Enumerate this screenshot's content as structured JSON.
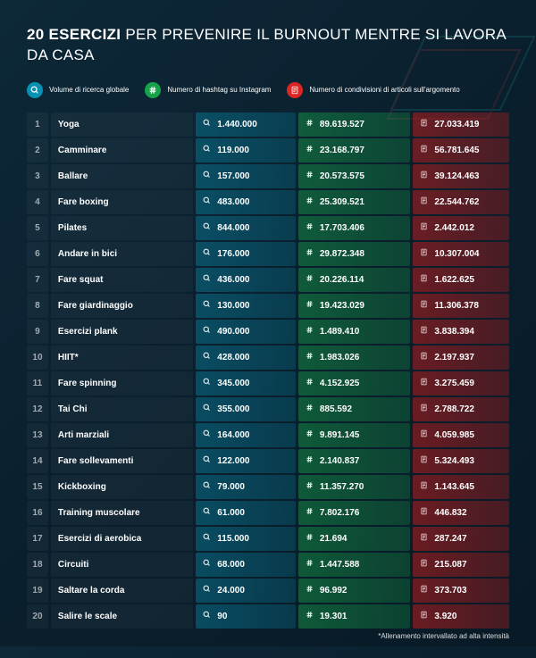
{
  "title_bold": "20 ESERCIZI",
  "title_rest": " PER PREVENIRE IL BURNOUT MENTRE SI LAVORA DA CASA",
  "legend": {
    "search": "Volume di ricerca globale",
    "hash": "Numero di hashtag su Instagram",
    "doc": "Numero di condivisioni di articoli sull'argomento"
  },
  "colors": {
    "search_icon_bg": "#0891b2",
    "hash_icon_bg": "#16a34a",
    "doc_icon_bg": "#dc2626",
    "search_cell_bg": "rgba(8,145,178,0.35)",
    "hash_cell_bg": "rgba(22,163,74,0.4)",
    "doc_cell_bg": "rgba(185,28,28,0.45)",
    "background": "#0a1f2d",
    "text": "#ffffff"
  },
  "table": {
    "type": "table",
    "columns": [
      "rank",
      "name",
      "search_volume",
      "hashtags",
      "shares"
    ],
    "rows": [
      {
        "rank": "1",
        "name": "Yoga",
        "search": "1.440.000",
        "hash": "89.619.527",
        "doc": "27.033.419"
      },
      {
        "rank": "2",
        "name": "Camminare",
        "search": "119.000",
        "hash": "23.168.797",
        "doc": "56.781.645"
      },
      {
        "rank": "3",
        "name": "Ballare",
        "search": "157.000",
        "hash": "20.573.575",
        "doc": "39.124.463"
      },
      {
        "rank": "4",
        "name": "Fare boxing",
        "search": "483.000",
        "hash": "25.309.521",
        "doc": "22.544.762"
      },
      {
        "rank": "5",
        "name": "Pilates",
        "search": "844.000",
        "hash": "17.703.406",
        "doc": "2.442.012"
      },
      {
        "rank": "6",
        "name": "Andare in bici",
        "search": "176.000",
        "hash": "29.872.348",
        "doc": "10.307.004"
      },
      {
        "rank": "7",
        "name": "Fare squat",
        "search": "436.000",
        "hash": "20.226.114",
        "doc": "1.622.625"
      },
      {
        "rank": "8",
        "name": "Fare giardinaggio",
        "search": "130.000",
        "hash": "19.423.029",
        "doc": "11.306.378"
      },
      {
        "rank": "9",
        "name": "Esercizi plank",
        "search": "490.000",
        "hash": "1.489.410",
        "doc": "3.838.394"
      },
      {
        "rank": "10",
        "name": "HIIT*",
        "search": "428.000",
        "hash": "1.983.026",
        "doc": "2.197.937"
      },
      {
        "rank": "11",
        "name": "Fare spinning",
        "search": "345.000",
        "hash": "4.152.925",
        "doc": "3.275.459"
      },
      {
        "rank": "12",
        "name": "Tai Chi",
        "search": "355.000",
        "hash": "885.592",
        "doc": "2.788.722"
      },
      {
        "rank": "13",
        "name": "Arti marziali",
        "search": "164.000",
        "hash": "9.891.145",
        "doc": "4.059.985"
      },
      {
        "rank": "14",
        "name": "Fare sollevamenti",
        "search": "122.000",
        "hash": "2.140.837",
        "doc": "5.324.493"
      },
      {
        "rank": "15",
        "name": "Kickboxing",
        "search": "79.000",
        "hash": "11.357.270",
        "doc": "1.143.645"
      },
      {
        "rank": "16",
        "name": "Training muscolare",
        "search": "61.000",
        "hash": "7.802.176",
        "doc": "446.832"
      },
      {
        "rank": "17",
        "name": "Esercizi di aerobica",
        "search": "115.000",
        "hash": "21.694",
        "doc": "287.247"
      },
      {
        "rank": "18",
        "name": "Circuiti",
        "search": "68.000",
        "hash": "1.447.588",
        "doc": "215.087"
      },
      {
        "rank": "19",
        "name": "Saltare la corda",
        "search": "24.000",
        "hash": "96.992",
        "doc": "373.703"
      },
      {
        "rank": "20",
        "name": "Salire le scale",
        "search": "90",
        "hash": "19.301",
        "doc": "3.920"
      }
    ]
  },
  "footnote": "*Allenamento intervallato ad alta intensità"
}
